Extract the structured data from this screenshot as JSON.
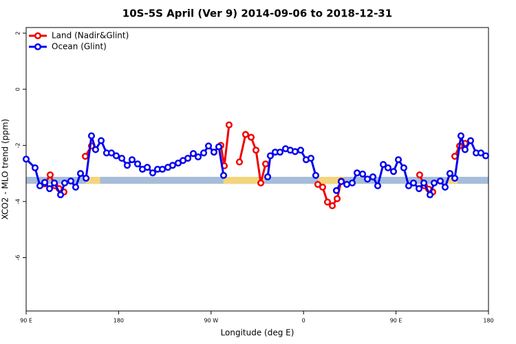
{
  "chart_data": {
    "type": "line",
    "title": "10S-5S April (Ver 9)   2014-09-06 to 2018-12-31",
    "xlabel": "Longitude (deg E)",
    "ylabel": "XCO2 - MLO trend (ppm)",
    "xlim": [
      90,
      540
    ],
    "ylim": [
      -7.9,
      2.2
    ],
    "xticks": [
      {
        "value": 90,
        "label": "90 E"
      },
      {
        "value": 180,
        "label": "180"
      },
      {
        "value": 270,
        "label": "90 W"
      },
      {
        "value": 360,
        "label": "0"
      },
      {
        "value": 450,
        "label": "90 E"
      },
      {
        "value": 540,
        "label": "180"
      }
    ],
    "yticks": [
      2,
      0,
      -2,
      -4,
      -6
    ],
    "legend": "topleft",
    "band": {
      "y": [
        -3.37,
        -3.12
      ],
      "color": "#a6bdda",
      "highlights": {
        "color": "#f3d57c",
        "x": [
          [
            148,
            162
          ],
          [
            282,
            322
          ],
          [
            374,
            399
          ],
          [
            500,
            510
          ]
        ]
      }
    },
    "series": [
      {
        "name": "Land (Nadir&Glint)",
        "color": "#ee0000",
        "x": [
          108.1,
          113.4,
          118.1,
          122.1,
          126.8,
          140,
          147.6,
          153.6,
          270,
          279.5,
          282.9,
          287.5,
          290,
          297.6,
          303.6,
          309.0,
          313.7,
          318.4,
          323.1,
          360,
          373.9,
          378.6,
          383.3,
          388.0,
          392.7,
          396.7,
          465,
          473.0,
          477.7,
          481.8,
          485.8,
          495,
          507.2,
          511.9,
          517.2
        ],
        "values": [
          -3.37,
          -3.05,
          -3.44,
          -3.54,
          -3.66,
          null,
          -2.39,
          -2.02,
          null,
          -2.0,
          -2.73,
          -1.27,
          null,
          -2.59,
          -1.61,
          -1.71,
          -2.17,
          -3.34,
          -2.66,
          null,
          -3.39,
          -3.49,
          -4.02,
          -4.15,
          -3.9,
          -3.27,
          null,
          -3.05,
          -3.44,
          -3.56,
          -3.66,
          null,
          -2.39,
          -2.02,
          -1.93
        ]
      },
      {
        "name": "Ocean (Glint)",
        "color": "#0000ee",
        "x": [
          90,
          98.7,
          103.4,
          108.1,
          112.8,
          117.5,
          123.5,
          127.5,
          133.5,
          138.2,
          142.9,
          148.3,
          153.6,
          157.6,
          163.0,
          168.3,
          173.0,
          177.7,
          183.1,
          188.4,
          193.1,
          198.5,
          203.2,
          207.9,
          213.2,
          217.9,
          222.6,
          228.0,
          232.6,
          238.0,
          242.7,
          247.4,
          252.7,
          257.4,
          262.8,
          267.5,
          272.8,
          277.5,
          282.2,
          300,
          325.1,
          327.7,
          332.4,
          337.1,
          342.5,
          347.1,
          351.8,
          357.2,
          362.5,
          367.2,
          371.9,
          380,
          392.0,
          396.7,
          402.1,
          407.4,
          412.1,
          417.5,
          422.2,
          427.5,
          432.2,
          437.6,
          442.2,
          447.6,
          452.3,
          457.6,
          462.3,
          467.0,
          472.4,
          477.1,
          483.1,
          487.1,
          493.1,
          497.8,
          502.5,
          507.2,
          513.2,
          517.2,
          522.6,
          528.0,
          532.6,
          537.3
        ],
        "values": [
          -2.49,
          -2.8,
          -3.44,
          -3.32,
          -3.54,
          -3.34,
          -3.76,
          -3.34,
          -3.27,
          -3.49,
          -3.0,
          -3.17,
          -1.66,
          -2.15,
          -1.83,
          -2.27,
          -2.27,
          -2.37,
          -2.46,
          -2.71,
          -2.51,
          -2.66,
          -2.85,
          -2.78,
          -2.98,
          -2.85,
          -2.85,
          -2.78,
          -2.71,
          -2.63,
          -2.54,
          -2.46,
          -2.29,
          -2.41,
          -2.27,
          -2.02,
          -2.24,
          -2.05,
          -3.07,
          null,
          -3.12,
          -2.37,
          -2.24,
          -2.24,
          -2.12,
          -2.17,
          -2.22,
          -2.17,
          -2.51,
          -2.46,
          -3.07,
          null,
          -3.61,
          -3.29,
          -3.39,
          -3.34,
          -2.98,
          -3.02,
          -3.2,
          -3.12,
          -3.44,
          -2.68,
          -2.8,
          -2.93,
          -2.51,
          -2.8,
          -3.44,
          -3.34,
          -3.54,
          -3.34,
          -3.76,
          -3.34,
          -3.27,
          -3.49,
          -3.0,
          -3.17,
          -1.66,
          -2.15,
          -1.83,
          -2.27,
          -2.27,
          -2.37
        ]
      }
    ]
  }
}
